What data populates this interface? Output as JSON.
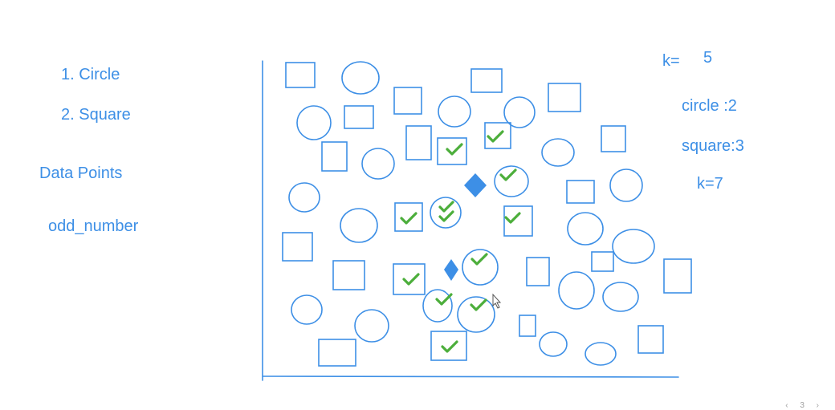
{
  "legend": [
    "1. Circle",
    "2. Square"
  ],
  "section_label": "Data Points",
  "variable_label": "odd_number",
  "k_label": "k=",
  "k_value": "5",
  "circle_count": "circle  :2",
  "square_count": "square:3",
  "k_alt": "k=7",
  "pager": {
    "prev": "‹",
    "page": "3",
    "next": "›"
  },
  "colors": {
    "shape": "#3d8fe6",
    "check": "#4cae3b",
    "query": "#3d8fe6"
  },
  "icons": [
    "check-icon",
    "diamond-query-icon",
    "cursor-icon"
  ],
  "neighbors": {
    "checked_circles": 4,
    "checked_squares": 6
  }
}
